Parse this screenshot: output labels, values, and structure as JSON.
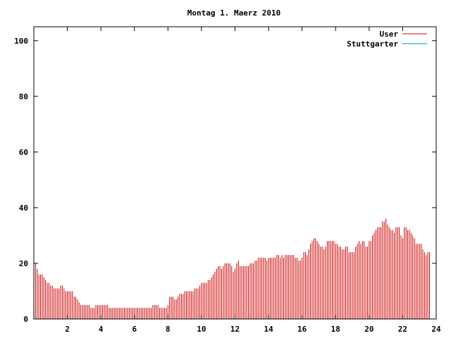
{
  "chart_data": {
    "type": "bar",
    "title": "Montag 1. Maerz 2010",
    "xlabel": "",
    "ylabel": "",
    "xlim": [
      0,
      24
    ],
    "ylim": [
      0,
      105
    ],
    "x_ticks": [
      "2",
      "4",
      "6",
      "8",
      "10",
      "12",
      "14",
      "16",
      "18",
      "20",
      "22",
      "24"
    ],
    "y_ticks": [
      "0",
      "20",
      "40",
      "60",
      "80",
      "100"
    ],
    "grid": false,
    "legend_position": "top-right",
    "series": [
      {
        "name": "User",
        "color": "#cc0000",
        "interval_hours": 0.1,
        "values": [
          20,
          20,
          18,
          16,
          16,
          16,
          15,
          14,
          13,
          13,
          12,
          12,
          11,
          11,
          11,
          11,
          12,
          12,
          11,
          10,
          10,
          10,
          10,
          10,
          8,
          8,
          7,
          6,
          5,
          5,
          5,
          5,
          5,
          5,
          4,
          4,
          4,
          5,
          5,
          5,
          5,
          5,
          5,
          5,
          5,
          4,
          4,
          4,
          4,
          4,
          4,
          4,
          4,
          4,
          4,
          4,
          4,
          4,
          4,
          4,
          4,
          4,
          4,
          4,
          4,
          4,
          4,
          4,
          4,
          4,
          4,
          5,
          5,
          5,
          5,
          4,
          4,
          4,
          4,
          4,
          5,
          8,
          8,
          8,
          7,
          7,
          8,
          9,
          9,
          9,
          10,
          10,
          10,
          10,
          10,
          10,
          11,
          11,
          11,
          12,
          13,
          13,
          13,
          13,
          14,
          14,
          15,
          16,
          17,
          18,
          19,
          19,
          18,
          19,
          20,
          20,
          20,
          20,
          19,
          17,
          18,
          20,
          21,
          19,
          19,
          19,
          19,
          19,
          19,
          20,
          20,
          20,
          21,
          21,
          22,
          22,
          22,
          22,
          22,
          21,
          22,
          22,
          22,
          22,
          22,
          23,
          23,
          22,
          23,
          22,
          23,
          23,
          23,
          23,
          23,
          23,
          22,
          22,
          21,
          21,
          22,
          24,
          24,
          23,
          25,
          27,
          28,
          29,
          29,
          28,
          27,
          26,
          26,
          25,
          26,
          28,
          28,
          28,
          28,
          28,
          27,
          27,
          26,
          26,
          25,
          25,
          26,
          26,
          24,
          24,
          24,
          24,
          26,
          27,
          28,
          27,
          28,
          28,
          26,
          26,
          28,
          28,
          30,
          31,
          32,
          33,
          33,
          33,
          35,
          35,
          36,
          34,
          33,
          32,
          32,
          31,
          33,
          33,
          33,
          30,
          29,
          33,
          33,
          32,
          32,
          31,
          30,
          29,
          27,
          27,
          27,
          27,
          25,
          24,
          23,
          24,
          24
        ]
      },
      {
        "name": "Stuttgarter",
        "color": "#009999",
        "values": []
      }
    ]
  }
}
